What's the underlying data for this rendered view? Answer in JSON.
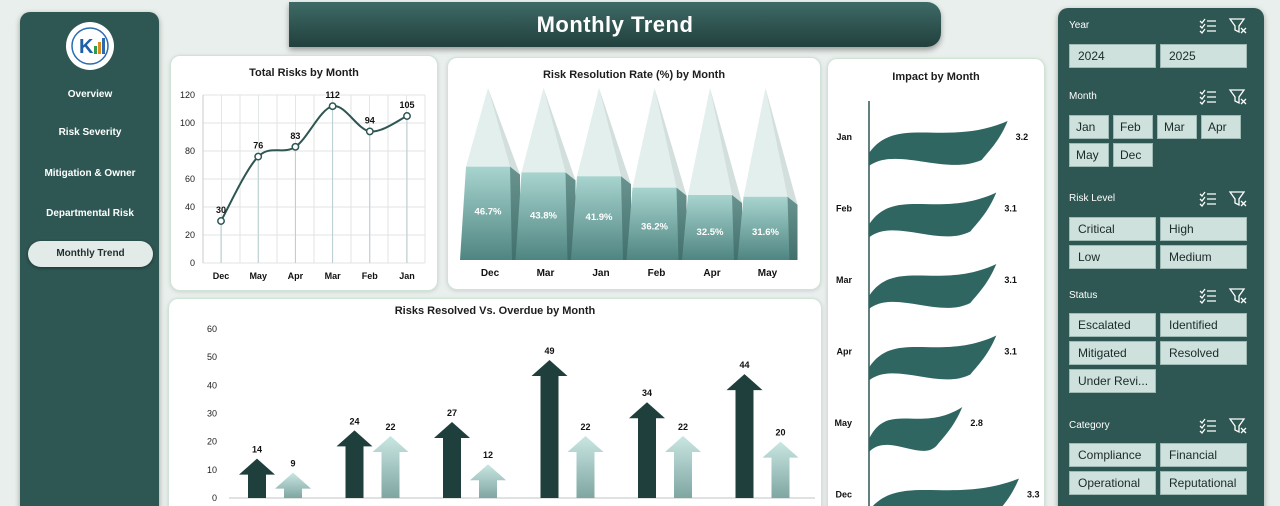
{
  "nav": {
    "items": [
      "Overview",
      "Risk Severity",
      "Mitigation & Owner",
      "Departmental Risk",
      "Monthly Trend"
    ],
    "active": "Monthly Trend"
  },
  "header": {
    "title": "Monthly Trend"
  },
  "charts": {
    "total_risks": {
      "title": "Total Risks by Month"
    },
    "resolution_rate": {
      "title": "Risk Resolution Rate (%) by Month"
    },
    "resolved_overdue": {
      "title": "Risks Resolved Vs. Overdue by Month"
    },
    "impact": {
      "title": "Impact by Month"
    }
  },
  "chart_data": [
    {
      "type": "line",
      "title": "Total Risks by Month",
      "categories": [
        "Dec",
        "May",
        "Apr",
        "Mar",
        "Feb",
        "Jan"
      ],
      "values": [
        30,
        76,
        83,
        112,
        94,
        105
      ],
      "ylim": [
        0,
        120
      ],
      "yticks": [
        0,
        20,
        40,
        60,
        80,
        100,
        120
      ],
      "grid": true
    },
    {
      "type": "bar",
      "title": "Risk Resolution Rate (%) by Month",
      "categories": [
        "Dec",
        "Mar",
        "Jan",
        "Feb",
        "Apr",
        "May"
      ],
      "values": [
        46.7,
        43.8,
        41.9,
        36.2,
        32.5,
        31.6
      ],
      "labels": [
        "46.7%",
        "43.8%",
        "41.9%",
        "36.2%",
        "32.5%",
        "31.6%"
      ]
    },
    {
      "type": "bar",
      "title": "Risks Resolved Vs. Overdue by Month",
      "ylim": [
        0,
        60
      ],
      "yticks": [
        0,
        10,
        20,
        30,
        40,
        50,
        60
      ],
      "series": [
        {
          "values": [
            14,
            24,
            27,
            49,
            34,
            44
          ]
        },
        {
          "values": [
            9,
            22,
            12,
            22,
            22,
            20
          ]
        }
      ]
    },
    {
      "type": "bar",
      "title": "Impact by Month",
      "categories": [
        "Jan",
        "Feb",
        "Mar",
        "Apr",
        "May",
        "Dec"
      ],
      "values": [
        3.2,
        3.1,
        3.1,
        3.1,
        2.8,
        3.3
      ]
    }
  ],
  "slicers": [
    {
      "title": "Year",
      "options": [
        "2024",
        "2025"
      ]
    },
    {
      "title": "Month",
      "options": [
        "Jan",
        "Feb",
        "Mar",
        "Apr",
        "May",
        "Dec"
      ]
    },
    {
      "title": "Risk Level",
      "options": [
        "Critical",
        "High",
        "Low",
        "Medium"
      ]
    },
    {
      "title": "Status",
      "options": [
        "Escalated",
        "Identified",
        "Mitigated",
        "Resolved",
        "Under Revi..."
      ]
    },
    {
      "title": "Category",
      "options": [
        "Compliance",
        "Financial",
        "Operational",
        "Reputational"
      ]
    }
  ],
  "colors": {
    "panel": "#2e5652",
    "accent_dark": "#1f3f3c",
    "accent_light": "#a9d3cf",
    "line": "#2e5652"
  }
}
